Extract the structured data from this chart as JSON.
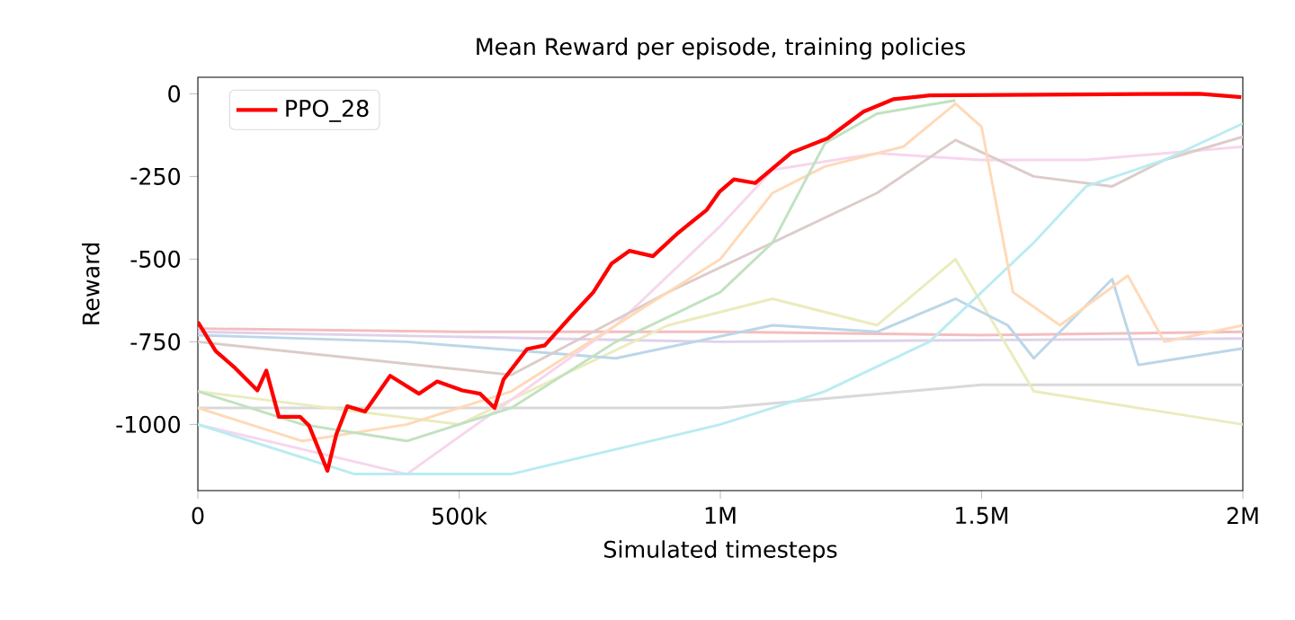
{
  "chart_data": {
    "type": "line",
    "title": "Mean Reward per episode, training policies",
    "xlabel": "Simulated timesteps",
    "ylabel": "Reward",
    "xlim": [
      0,
      2000000
    ],
    "ylim": [
      -1200,
      50
    ],
    "xticks": [
      0,
      {
        "value": 500000,
        "label": "500k"
      },
      {
        "value": 1000000,
        "label": "1M"
      },
      {
        "value": 1500000,
        "label": "1.5M"
      },
      {
        "value": 2000000,
        "label": "2M"
      }
    ],
    "yticks": [
      -1000,
      -750,
      -500,
      -250,
      0
    ],
    "legend": "top left",
    "series": [
      {
        "color": "#dfd1eb",
        "x": [
          0,
          1000000,
          2000000
        ],
        "values": [
          -720,
          -750,
          -740
        ]
      },
      {
        "color": "#f3bebf",
        "x": [
          0,
          500000,
          1000000,
          1500000,
          2000000
        ],
        "values": [
          -710,
          -720,
          -720,
          -730,
          -720
        ]
      },
      {
        "color": "#d9d9d9",
        "x": [
          0,
          500000,
          1000000,
          1500000,
          2000000
        ],
        "values": [
          -950,
          -950,
          -950,
          -880,
          -880
        ]
      },
      {
        "color": "#ebebbd",
        "x": [
          0,
          500000,
          900000,
          1100000,
          1300000,
          1450000,
          1600000,
          2000000
        ],
        "values": [
          -900,
          -1000,
          -700,
          -620,
          -700,
          -500,
          -900,
          -1000
        ]
      },
      {
        "color": "#bcd6e8",
        "x": [
          0,
          400000,
          800000,
          1100000,
          1300000,
          1450000,
          1550000,
          1600000,
          1750000,
          1800000,
          2000000
        ],
        "values": [
          -730,
          -750,
          -800,
          -700,
          -720,
          -620,
          -700,
          -800,
          -560,
          -820,
          -770
        ]
      },
      {
        "color": "#f7d6ed",
        "x": [
          0,
          400000,
          800000,
          1000000,
          1100000,
          1300000,
          1500000,
          1700000,
          2000000
        ],
        "values": [
          -1000,
          -1150,
          -700,
          -400,
          -230,
          -180,
          -200,
          -200,
          -160
        ]
      },
      {
        "color": "#dcccc9",
        "x": [
          0,
          300000,
          600000,
          900000,
          1100000,
          1300000,
          1450000,
          1600000,
          1750000,
          1850000,
          2000000
        ],
        "values": [
          -750,
          -800,
          -850,
          -600,
          -450,
          -300,
          -140,
          -250,
          -280,
          -200,
          -130
        ]
      },
      {
        "color": "#b9ecf1",
        "x": [
          0,
          300000,
          600000,
          1000000,
          1200000,
          1400000,
          1600000,
          1700000,
          1850000,
          2000000
        ],
        "values": [
          -1000,
          -1150,
          -1150,
          -1000,
          -900,
          -750,
          -450,
          -280,
          -200,
          -90
        ]
      },
      {
        "color": "#ffd9b7",
        "x": [
          0,
          200000,
          400000,
          600000,
          800000,
          1000000,
          1100000,
          1200000,
          1350000,
          1450000,
          1500000,
          1560000,
          1650000,
          1780000,
          1850000,
          2000000
        ],
        "values": [
          -950,
          -1050,
          -1000,
          -900,
          -700,
          -500,
          -300,
          -220,
          -160,
          -30,
          -100,
          -600,
          -700,
          -550,
          -750,
          -700
        ]
      },
      {
        "color": "#c0e2c0",
        "x": [
          0,
          200000,
          400000,
          600000,
          800000,
          1000000,
          1100000,
          1200000,
          1300000,
          1450000
        ],
        "values": [
          -900,
          -1000,
          -1050,
          -950,
          -750,
          -600,
          -450,
          -150,
          -60,
          -20
        ]
      },
      {
        "name": "PPO_28",
        "color": "#ff0000",
        "x": [
          0,
          34000,
          69000,
          114000,
          131000,
          155000,
          196000,
          213000,
          248000,
          265000,
          286000,
          320000,
          368000,
          423000,
          458000,
          506000,
          540000,
          568000,
          585000,
          630000,
          664000,
          713000,
          757000,
          792000,
          826000,
          871000,
          919000,
          974000,
          998000,
          1026000,
          1067000,
          1136000,
          1205000,
          1274000,
          1332000,
          1401000,
          1687000,
          1917000,
          1997000
        ],
        "values": [
          -690,
          -778,
          -826,
          -897,
          -837,
          -977,
          -977,
          -1004,
          -1140,
          -1030,
          -945,
          -961,
          -853,
          -907,
          -870,
          -897,
          -907,
          -950,
          -864,
          -772,
          -761,
          -675,
          -600,
          -513,
          -475,
          -491,
          -421,
          -351,
          -297,
          -259,
          -270,
          -178,
          -135,
          -54,
          -16,
          -5,
          -2,
          0,
          -10
        ]
      }
    ]
  }
}
